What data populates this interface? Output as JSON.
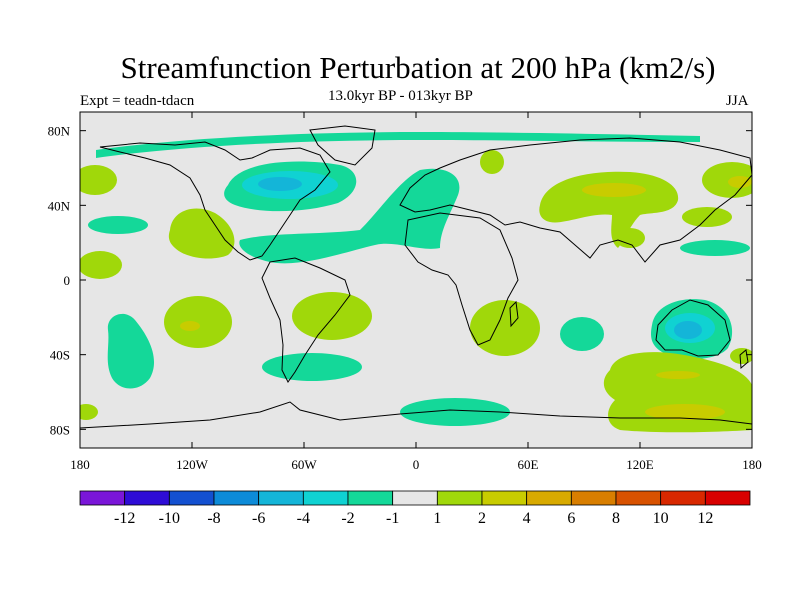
{
  "header": {
    "title": "Streamfunction Perturbation at 200 hPa (km2/s)",
    "subtitle": "13.0kyr BP - 013kyr BP",
    "experiment": "Expt = teadn-tdacn",
    "season": "JJA"
  },
  "chart_data": {
    "type": "map",
    "projection": "cylindrical-equidistant",
    "variable": "Streamfunction Perturbation at 200 hPa (km2/s)",
    "lon_range": [
      -180,
      180
    ],
    "lat_range": [
      -90,
      90
    ],
    "x_tick_labels": [
      "180",
      "120W",
      "60W",
      "0",
      "60E",
      "120E",
      "180"
    ],
    "x_tick_lons": [
      -180,
      -120,
      -60,
      0,
      60,
      120,
      180
    ],
    "y_tick_labels": [
      "80N",
      "40N",
      "0",
      "40S",
      "80S"
    ],
    "y_tick_lats": [
      80,
      40,
      0,
      -40,
      -80
    ],
    "colorbar": {
      "labels": [
        "-12",
        "-10",
        "-8",
        "-6",
        "-4",
        "-2",
        "-1",
        "1",
        "2",
        "4",
        "6",
        "8",
        "10",
        "12"
      ],
      "colors": [
        "#7a16d8",
        "#2e0cd6",
        "#1350d0",
        "#0d8bd8",
        "#14b5d8",
        "#10d2d2",
        "#14d899",
        "#e6e6e6",
        "#a0d80a",
        "#c8cc00",
        "#d8aa00",
        "#d87e00",
        "#d85200",
        "#d82800",
        "#d80000"
      ]
    },
    "features": [
      {
        "name": "north-america-low",
        "level": -4,
        "color": "#14b5d8",
        "lon": -95,
        "lat": 55
      },
      {
        "name": "australia-low",
        "level": -4,
        "color": "#14b5d8",
        "lon": 135,
        "lat": -25
      },
      {
        "name": "asia-high",
        "level": 4,
        "color": "#d8aa00",
        "lon": 105,
        "lat": 50
      },
      {
        "name": "southern-ocean-high",
        "level": 4,
        "color": "#d8aa00",
        "lon": 140,
        "lat": -72
      },
      {
        "name": "south-pacific-high",
        "level": 4,
        "color": "#d8aa00",
        "lon": -138,
        "lat": -24
      }
    ]
  }
}
